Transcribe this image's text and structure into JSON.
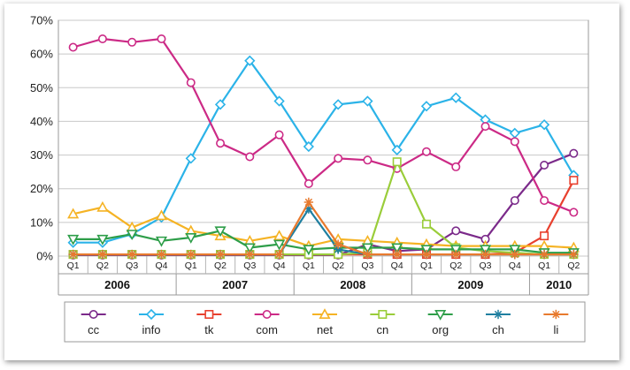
{
  "chart_data": {
    "type": "line",
    "title": "",
    "xlabel": "",
    "ylabel": "",
    "ylim": [
      0,
      70
    ],
    "y_ticks": [
      "0%",
      "10%",
      "20%",
      "30%",
      "40%",
      "50%",
      "60%",
      "70%"
    ],
    "y_tick_values": [
      0,
      10,
      20,
      30,
      40,
      50,
      60,
      70
    ],
    "x": [
      "Q1",
      "Q2",
      "Q3",
      "Q4",
      "Q1",
      "Q2",
      "Q3",
      "Q4",
      "Q1",
      "Q2",
      "Q3",
      "Q4",
      "Q1",
      "Q2",
      "Q3",
      "Q4",
      "Q1",
      "Q2"
    ],
    "years": [
      {
        "label": "2006",
        "quarters": 4
      },
      {
        "label": "2007",
        "quarters": 4
      },
      {
        "label": "2008",
        "quarters": 4
      },
      {
        "label": "2009",
        "quarters": 4
      },
      {
        "label": "2010",
        "quarters": 2
      }
    ],
    "grid": true,
    "legend": "bottom",
    "series": [
      {
        "name": "cc",
        "color": "#7b2a8a",
        "marker": "circle",
        "values": [
          0.3,
          0.3,
          0.3,
          0.3,
          0.3,
          0.3,
          0.3,
          0.3,
          0.3,
          0.3,
          3.5,
          1.5,
          2,
          7.5,
          5,
          16.5,
          27,
          30.5
        ]
      },
      {
        "name": "info",
        "color": "#2bb3e8",
        "marker": "diamond",
        "values": [
          4,
          4,
          6.5,
          11.5,
          29,
          45,
          58,
          46,
          32.5,
          45,
          46,
          31.5,
          44.5,
          47,
          40.5,
          36.5,
          39,
          24
        ]
      },
      {
        "name": "tk",
        "color": "#e8402e",
        "marker": "square",
        "values": [
          0.5,
          0.5,
          0.5,
          0.5,
          0.5,
          0.5,
          0.5,
          0.5,
          0.5,
          0.5,
          0.5,
          0.5,
          0.5,
          0.5,
          0.5,
          1,
          6,
          22.5
        ]
      },
      {
        "name": "com",
        "color": "#cc2a86",
        "marker": "circle",
        "values": [
          62,
          64.5,
          63.5,
          64.5,
          51.5,
          33.5,
          29.5,
          36,
          21.5,
          29,
          28.5,
          26,
          31,
          26.5,
          38.5,
          34,
          16.5,
          13
        ]
      },
      {
        "name": "net",
        "color": "#f5b324",
        "marker": "triangle-up",
        "values": [
          12.5,
          14.5,
          8.5,
          12,
          7.5,
          6,
          4.5,
          6,
          3,
          5,
          4.5,
          4,
          3.5,
          3,
          3,
          3,
          3,
          2.5
        ]
      },
      {
        "name": "cn",
        "color": "#9acd3a",
        "marker": "square",
        "values": [
          0.5,
          0.5,
          0.5,
          0.5,
          0.5,
          0.5,
          0.5,
          0.5,
          0.5,
          0.5,
          1,
          28,
          9.5,
          2.5,
          1.5,
          1,
          0.5,
          0.5
        ]
      },
      {
        "name": "org",
        "color": "#2e9e49",
        "marker": "triangle-down",
        "values": [
          5,
          5,
          6.5,
          4.5,
          5.5,
          7.5,
          2.5,
          3.5,
          2,
          2.5,
          2.5,
          2.5,
          2,
          2,
          2,
          2,
          1,
          1
        ]
      },
      {
        "name": "ch",
        "color": "#1f7fa0",
        "marker": "asterisk",
        "values": [
          0.5,
          0.5,
          0.5,
          0.5,
          0.5,
          0.5,
          0.5,
          0.5,
          14,
          2,
          0.5,
          0.5,
          0.5,
          0.5,
          0.5,
          0.5,
          0.5,
          0.5
        ]
      },
      {
        "name": "li",
        "color": "#e87a2e",
        "marker": "asterisk",
        "values": [
          0.5,
          0.5,
          0.5,
          0.5,
          0.5,
          0.5,
          0.5,
          0.5,
          16,
          3.5,
          0.5,
          0.5,
          0.5,
          0.5,
          0.5,
          0.5,
          0.5,
          0.5
        ]
      }
    ]
  }
}
